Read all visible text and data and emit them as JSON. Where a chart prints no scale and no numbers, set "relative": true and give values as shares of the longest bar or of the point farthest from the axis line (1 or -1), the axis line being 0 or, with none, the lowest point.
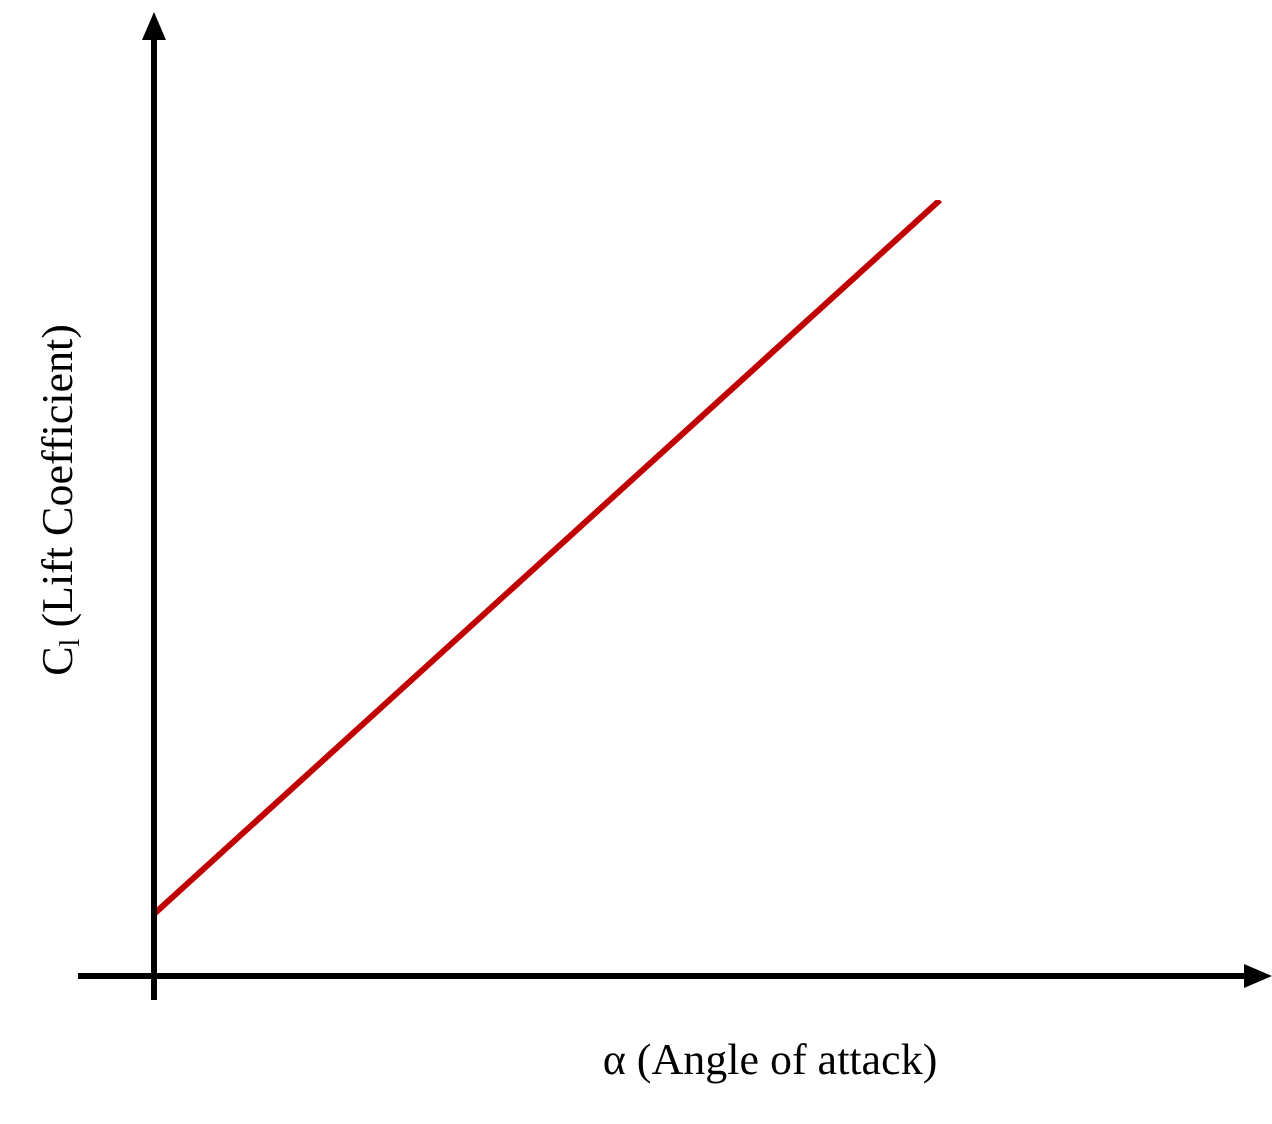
{
  "chart_data": {
    "type": "line",
    "xlabel": "α (Angle of attack)",
    "ylabel": "C$_{l}$ (Lift Coefficient)",
    "relative": true,
    "marker": "none",
    "categories": [
      null,
      null
    ],
    "series": [
      {
        "color": "#c00000",
        "values": [
          0.08,
          1
        ]
      }
    ]
  }
}
